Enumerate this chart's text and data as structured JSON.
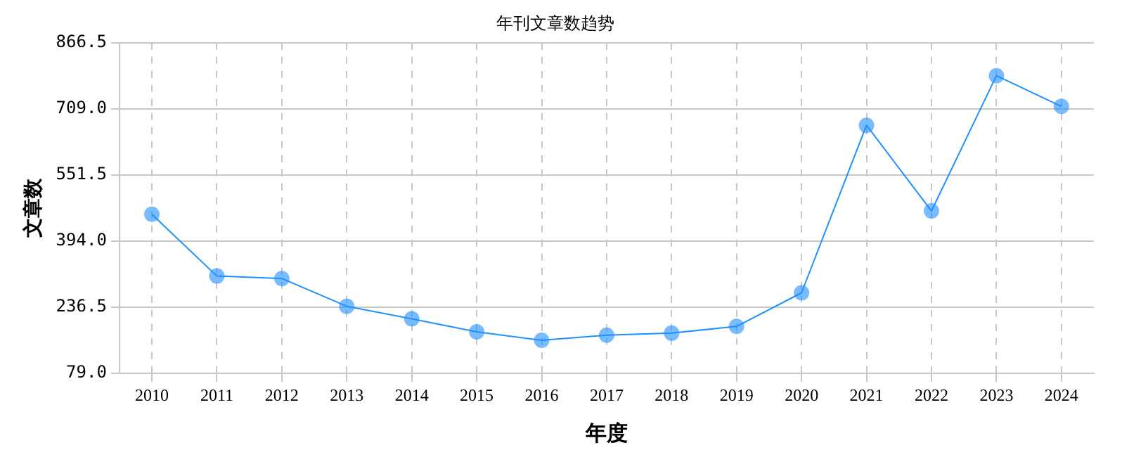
{
  "chart_data": {
    "type": "line",
    "title": "年刊文章数趋势",
    "xlabel": "年度",
    "ylabel": "文章数",
    "categories": [
      "2010",
      "2011",
      "2012",
      "2013",
      "2014",
      "2015",
      "2016",
      "2017",
      "2018",
      "2019",
      "2020",
      "2021",
      "2022",
      "2023",
      "2024"
    ],
    "series": [
      {
        "color": "#1e90ff",
        "values": [
          458,
          311,
          305,
          239,
          209,
          178,
          158,
          170,
          175,
          191,
          271,
          670,
          466,
          788,
          715
        ]
      }
    ],
    "ylim": [
      79,
      866.5
    ],
    "yticks": [
      {
        "value": 79,
        "label": "79.0"
      },
      {
        "value": 236.5,
        "label": "236.5"
      },
      {
        "value": 394,
        "label": "394.0"
      },
      {
        "value": 551.5,
        "label": "551.5"
      },
      {
        "value": 709,
        "label": "709.0"
      },
      {
        "value": 866.5,
        "label": "866.5"
      }
    ],
    "grid": true,
    "legend": false,
    "marker": "circle",
    "line_style": "solid"
  }
}
